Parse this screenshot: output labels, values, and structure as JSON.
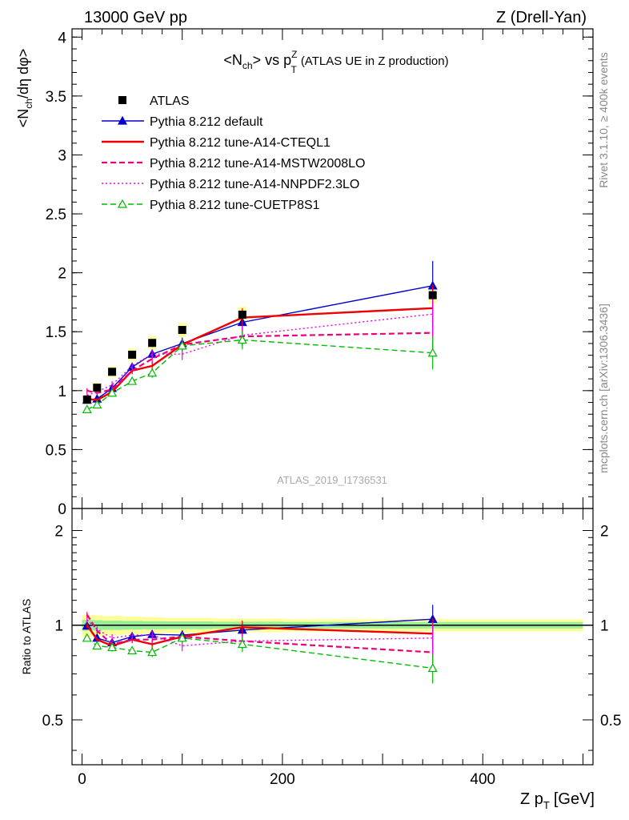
{
  "header": {
    "left": "13000 GeV pp",
    "right": "Z (Drell-Yan)"
  },
  "side_labels": {
    "rivet": "Rivet 3.1.10, ≥ 400k events",
    "mcplots": "mcplots.cern.ch [arXiv:1306.3436]"
  },
  "watermark": "ATLAS_2019_I1736531",
  "chart_data": [
    {
      "type": "line",
      "title": {
        "pre": "<N",
        "sub1": "ch",
        "mid": "> vs p",
        "sub2": "T",
        "sup2": "Z",
        "post": "(ATLAS UE in Z production)"
      },
      "ylabel": "<N_ch/dη dφ>",
      "ylabel_parts": {
        "a": "<N",
        "sub": "ch",
        "b": "/dη dφ>"
      },
      "xlim": [
        -10,
        510
      ],
      "ylim": [
        0,
        4.07
      ],
      "yticks": [
        "0",
        "0.5",
        "1",
        "1.5",
        "2",
        "2.5",
        "3",
        "3.5",
        "4"
      ],
      "ytick_values": [
        0,
        0.5,
        1,
        1.5,
        2,
        2.5,
        3,
        3.5,
        4
      ],
      "x": [
        5,
        15,
        30,
        50,
        70,
        100,
        160,
        350
      ],
      "data": {
        "name": "ATLAS",
        "values": [
          0.925,
          1.025,
          1.16,
          1.305,
          1.405,
          1.515,
          1.645,
          1.81
        ]
      },
      "series": [
        {
          "name": "Pythia 8.212 default",
          "color": "#0000cc",
          "style": "solid-triangle",
          "values": [
            0.92,
            0.93,
            1.02,
            1.2,
            1.31,
            1.4,
            1.58,
            1.89
          ],
          "errors": [
            0.02,
            0.02,
            0.03,
            0.03,
            0.04,
            0.05,
            0.08,
            0.21
          ]
        },
        {
          "name": "Pythia 8.212 tune-A14-CTEQL1",
          "color": "#ee0000",
          "style": "solid-thick",
          "values": [
            0.93,
            0.92,
            0.99,
            1.17,
            1.21,
            1.39,
            1.62,
            1.7
          ],
          "errors": [
            0.02,
            0.02,
            0.03,
            0.03,
            0.04,
            0.05,
            0.08,
            0.2
          ]
        },
        {
          "name": "Pythia 8.212 tune-A14-MSTW2008LO",
          "color": "#ee0077",
          "style": "dashed",
          "values": [
            1.0,
            0.98,
            1.01,
            1.17,
            1.27,
            1.39,
            1.46,
            1.49
          ],
          "errors": [
            0.02,
            0.02,
            0.03,
            0.03,
            0.04,
            0.05,
            0.08,
            0.2
          ]
        },
        {
          "name": "Pythia 8.212 tune-A14-NNPDF2.3LO",
          "color": "#ee00ee",
          "style": "dotted",
          "values": [
            0.96,
            0.99,
            1.05,
            1.21,
            1.31,
            1.31,
            1.47,
            1.65
          ],
          "errors": [
            0.02,
            0.02,
            0.03,
            0.03,
            0.04,
            0.05,
            0.08,
            0.2
          ]
        },
        {
          "name": "Pythia 8.212 tune-CUETP8S1",
          "color": "#00bb00",
          "style": "dashed-triangle",
          "values": [
            0.84,
            0.88,
            0.98,
            1.08,
            1.15,
            1.38,
            1.43,
            1.32
          ],
          "errors": [
            0.02,
            0.02,
            0.03,
            0.03,
            0.04,
            0.05,
            0.08,
            0.14
          ]
        }
      ]
    },
    {
      "type": "line",
      "title": "",
      "ylabel": "Ratio to ATLAS",
      "xlabel": "Z p_T [GeV]",
      "xlabel_parts": {
        "a": "Z p",
        "sub": "T",
        "b": "[GeV]"
      },
      "ylim": [
        0.36,
        2.35
      ],
      "yticks": [
        "0.5",
        "1",
        "2"
      ],
      "ytick_values": [
        0.5,
        1,
        2
      ],
      "xticks": [
        "0",
        "200",
        "400"
      ],
      "xtick_values": [
        0,
        200,
        400
      ],
      "x": [
        5,
        15,
        30,
        50,
        70,
        100,
        160,
        350
      ],
      "band_yellow": [
        0.08,
        0.075,
        0.07,
        0.065,
        0.06,
        0.055,
        0.05,
        0.045
      ],
      "band_green": [
        0.04,
        0.037,
        0.034,
        0.032,
        0.03,
        0.028,
        0.026,
        0.024
      ],
      "series": [
        {
          "name": "Pythia 8.212 default",
          "color": "#0000cc",
          "style": "solid-triangle",
          "values": [
            0.995,
            0.91,
            0.88,
            0.92,
            0.935,
            0.93,
            0.965,
            1.045
          ]
        },
        {
          "name": "Pythia 8.212 tune-A14-CTEQL1",
          "color": "#ee0000",
          "style": "solid-thick",
          "values": [
            1.0,
            0.9,
            0.86,
            0.9,
            0.87,
            0.92,
            0.985,
            0.94
          ]
        },
        {
          "name": "Pythia 8.212 tune-A14-MSTW2008LO",
          "color": "#ee0077",
          "style": "dashed",
          "values": [
            1.08,
            0.96,
            0.87,
            0.9,
            0.9,
            0.92,
            0.89,
            0.82
          ]
        },
        {
          "name": "Pythia 8.212 tune-A14-NNPDF2.3LO",
          "color": "#ee00ee",
          "style": "dotted",
          "values": [
            1.04,
            0.97,
            0.91,
            0.93,
            0.93,
            0.86,
            0.89,
            0.91
          ]
        },
        {
          "name": "Pythia 8.212 tune-CUETP8S1",
          "color": "#00bb00",
          "style": "dashed-triangle",
          "values": [
            0.91,
            0.86,
            0.85,
            0.83,
            0.82,
            0.91,
            0.87,
            0.73
          ]
        }
      ]
    }
  ]
}
